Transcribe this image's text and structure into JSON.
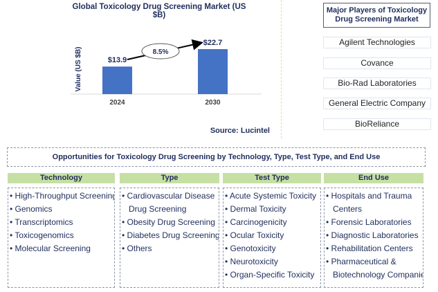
{
  "chart_data": {
    "type": "bar",
    "title": "Global Toxicology Drug Screening Market (US $B)",
    "ylabel": "Value (US $B)",
    "categories": [
      "2024",
      "2030"
    ],
    "values": [
      13.9,
      22.7
    ],
    "data_labels": [
      "$13.9",
      "$22.7"
    ],
    "annotation": "8.5%",
    "source": "Source: Lucintel",
    "bar_color": "#4472c4",
    "grid": false
  },
  "players": {
    "title": "Major Players of Toxicology Drug Screening Market",
    "items": [
      "Agilent Technologies",
      "Covance",
      "Bio-Rad Laboratories",
      "General Electric Company",
      "BioReliance"
    ]
  },
  "opportunities": {
    "title": "Opportunities for Toxicology Drug Screening by Technology, Type, Test Type, and End Use",
    "columns": [
      {
        "heading": "Technology",
        "items": [
          "• High-Throughput Screening",
          "• Genomics",
          "• Transcriptomics",
          "• Toxicogenomics",
          "• Molecular Screening"
        ]
      },
      {
        "heading": "Type",
        "items": [
          "• Cardiovascular Disease",
          "   Drug Screening",
          "• Obesity Drug Screening",
          "• Diabetes Drug Screening",
          "• Others"
        ]
      },
      {
        "heading": "Test Type",
        "items": [
          "• Acute Systemic Toxicity",
          "• Dermal Toxicity",
          "• Carcinogenicity",
          "• Ocular Toxicity",
          "• Genotoxicity",
          "• Neurotoxicity",
          "• Organ-Specific Toxicity"
        ]
      },
      {
        "heading": "End Use",
        "items": [
          "• Hospitals and Trauma",
          "   Centers",
          "• Forensic Laboratories",
          "• Diagnostic Laboratories",
          "• Rehabilitation Centers",
          "• Pharmaceutical &",
          "   Biotechnology Companies"
        ]
      }
    ]
  }
}
